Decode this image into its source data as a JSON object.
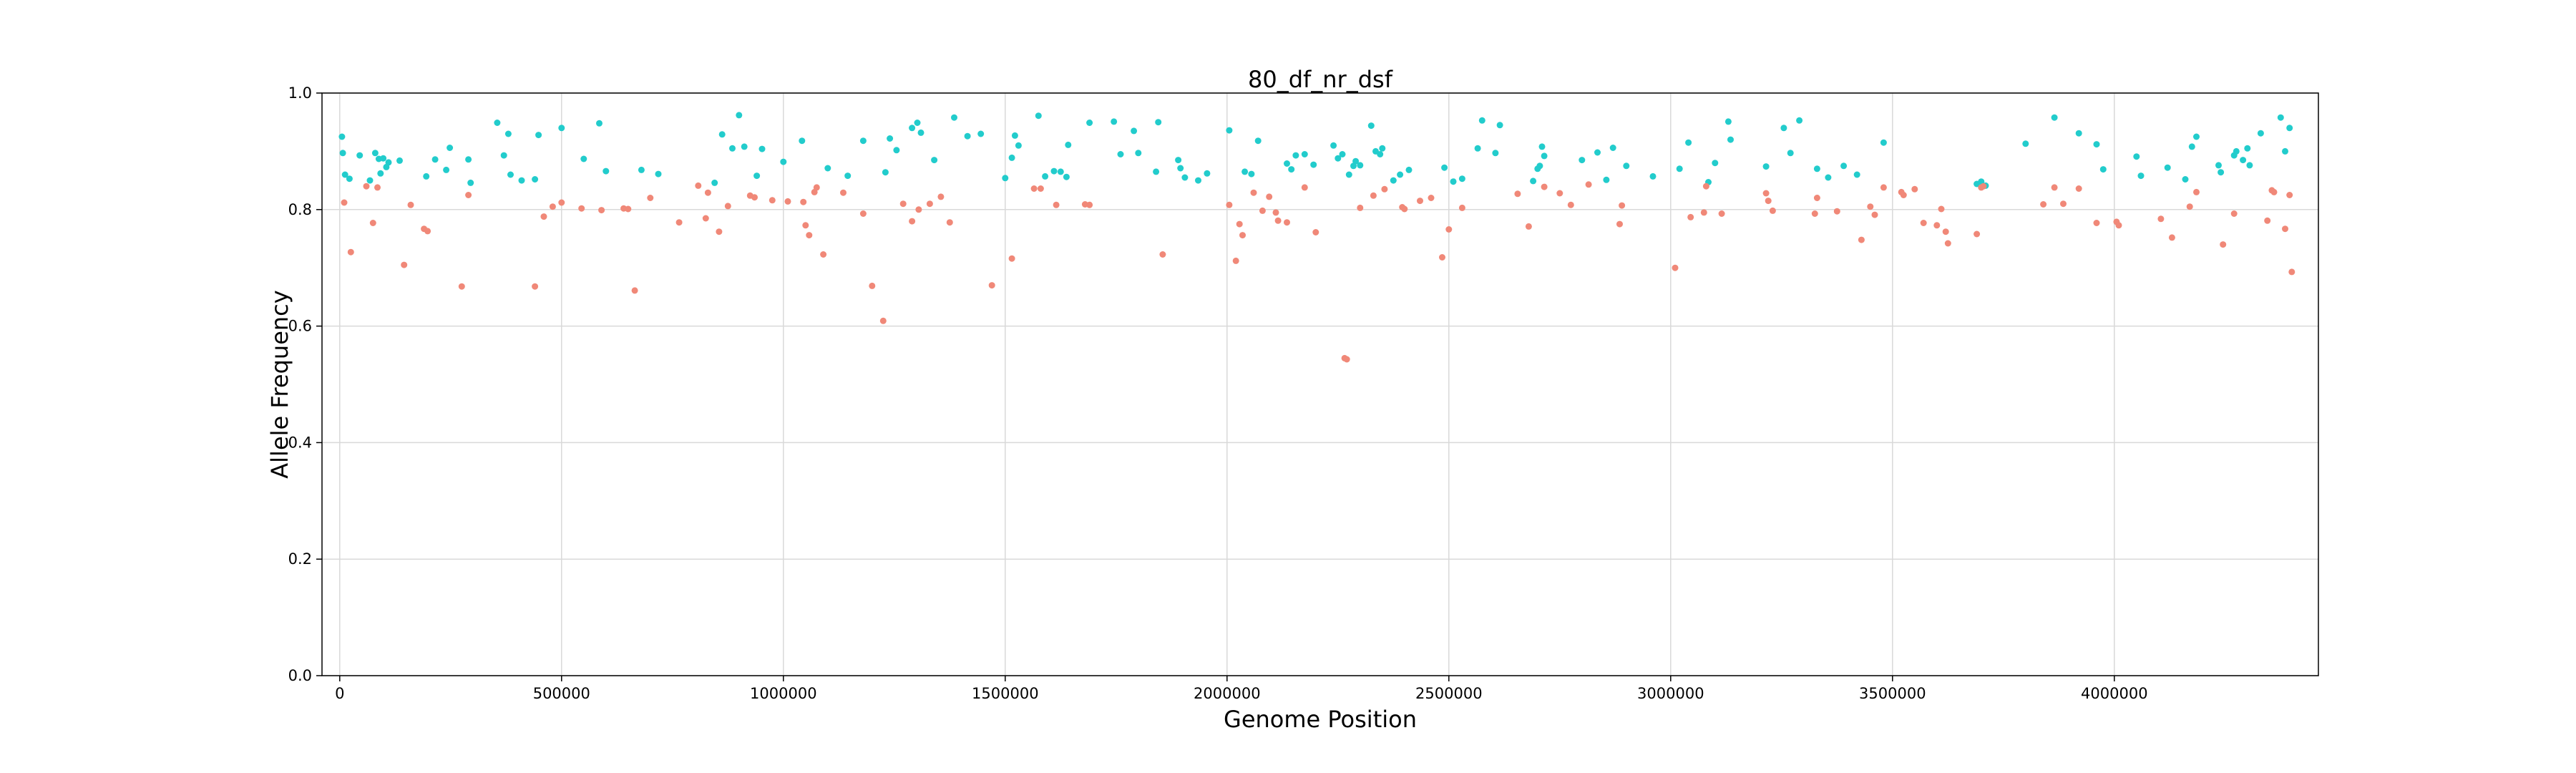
{
  "chart_data": {
    "type": "scatter",
    "title": "80_df_nr_dsf",
    "xlabel": "Genome Position",
    "ylabel": "Allele Frequency",
    "xlim": [
      -40000,
      4460000
    ],
    "ylim": [
      0.0,
      1.0
    ],
    "grid": true,
    "legend": "none",
    "xticks": [
      0,
      500000,
      1000000,
      1500000,
      2000000,
      2500000,
      3000000,
      3500000,
      4000000
    ],
    "xtick_labels": [
      "0",
      "500000",
      "1000000",
      "1500000",
      "2000000",
      "2500000",
      "3000000",
      "3500000",
      "4000000"
    ],
    "yticks": [
      0.0,
      0.2,
      0.4,
      0.6,
      0.8,
      1.0
    ],
    "ytick_labels": [
      "0.0",
      "0.2",
      "0.4",
      "0.6",
      "0.8",
      "1.0"
    ],
    "series": [
      {
        "color": "#22CCCC",
        "points": [
          [
            5000,
            0.925
          ],
          [
            7000,
            0.897
          ],
          [
            12000,
            0.86
          ],
          [
            22000,
            0.853
          ],
          [
            45000,
            0.893
          ],
          [
            68000,
            0.85
          ],
          [
            80000,
            0.897
          ],
          [
            88000,
            0.887
          ],
          [
            92000,
            0.862
          ],
          [
            98000,
            0.888
          ],
          [
            105000,
            0.873
          ],
          [
            110000,
            0.881
          ],
          [
            135000,
            0.884
          ],
          [
            195000,
            0.857
          ],
          [
            215000,
            0.886
          ],
          [
            240000,
            0.868
          ],
          [
            248000,
            0.906
          ],
          [
            290000,
            0.886
          ],
          [
            295000,
            0.846
          ],
          [
            355000,
            0.949
          ],
          [
            370000,
            0.893
          ],
          [
            380000,
            0.93
          ],
          [
            385000,
            0.86
          ],
          [
            410000,
            0.85
          ],
          [
            440000,
            0.852
          ],
          [
            448000,
            0.928
          ],
          [
            500000,
            0.94
          ],
          [
            550000,
            0.887
          ],
          [
            585000,
            0.948
          ],
          [
            600000,
            0.866
          ],
          [
            680000,
            0.868
          ],
          [
            718000,
            0.861
          ],
          [
            845000,
            0.846
          ],
          [
            862000,
            0.929
          ],
          [
            885000,
            0.905
          ],
          [
            900000,
            0.962
          ],
          [
            912000,
            0.908
          ],
          [
            940000,
            0.858
          ],
          [
            952000,
            0.904
          ],
          [
            1000000,
            0.882
          ],
          [
            1042000,
            0.918
          ],
          [
            1100000,
            0.871
          ],
          [
            1145000,
            0.858
          ],
          [
            1180000,
            0.918
          ],
          [
            1230000,
            0.864
          ],
          [
            1240000,
            0.922
          ],
          [
            1255000,
            0.902
          ],
          [
            1290000,
            0.94
          ],
          [
            1302000,
            0.949
          ],
          [
            1310000,
            0.932
          ],
          [
            1340000,
            0.885
          ],
          [
            1385000,
            0.958
          ],
          [
            1415000,
            0.926
          ],
          [
            1445000,
            0.93
          ],
          [
            1500000,
            0.854
          ],
          [
            1515000,
            0.889
          ],
          [
            1522000,
            0.927
          ],
          [
            1530000,
            0.91
          ],
          [
            1575000,
            0.961
          ],
          [
            1590000,
            0.857
          ],
          [
            1610000,
            0.866
          ],
          [
            1625000,
            0.865
          ],
          [
            1638000,
            0.856
          ],
          [
            1642000,
            0.911
          ],
          [
            1690000,
            0.949
          ],
          [
            1745000,
            0.951
          ],
          [
            1760000,
            0.895
          ],
          [
            1790000,
            0.935
          ],
          [
            1800000,
            0.897
          ],
          [
            1840000,
            0.865
          ],
          [
            1845000,
            0.95
          ],
          [
            1890000,
            0.885
          ],
          [
            1895000,
            0.871
          ],
          [
            1905000,
            0.855
          ],
          [
            1935000,
            0.85
          ],
          [
            1955000,
            0.862
          ],
          [
            2005000,
            0.936
          ],
          [
            2040000,
            0.865
          ],
          [
            2055000,
            0.861
          ],
          [
            2070000,
            0.918
          ],
          [
            2135000,
            0.879
          ],
          [
            2145000,
            0.869
          ],
          [
            2155000,
            0.893
          ],
          [
            2175000,
            0.895
          ],
          [
            2195000,
            0.877
          ],
          [
            2240000,
            0.91
          ],
          [
            2250000,
            0.888
          ],
          [
            2260000,
            0.895
          ],
          [
            2275000,
            0.86
          ],
          [
            2285000,
            0.875
          ],
          [
            2290000,
            0.883
          ],
          [
            2300000,
            0.876
          ],
          [
            2325000,
            0.944
          ],
          [
            2335000,
            0.9
          ],
          [
            2345000,
            0.895
          ],
          [
            2350000,
            0.905
          ],
          [
            2375000,
            0.85
          ],
          [
            2390000,
            0.86
          ],
          [
            2410000,
            0.868
          ],
          [
            2490000,
            0.872
          ],
          [
            2510000,
            0.848
          ],
          [
            2530000,
            0.853
          ],
          [
            2565000,
            0.905
          ],
          [
            2575000,
            0.953
          ],
          [
            2605000,
            0.897
          ],
          [
            2615000,
            0.945
          ],
          [
            2690000,
            0.849
          ],
          [
            2700000,
            0.87
          ],
          [
            2705000,
            0.875
          ],
          [
            2710000,
            0.908
          ],
          [
            2715000,
            0.892
          ],
          [
            2800000,
            0.885
          ],
          [
            2835000,
            0.898
          ],
          [
            2870000,
            0.906
          ],
          [
            2855000,
            0.851
          ],
          [
            2900000,
            0.875
          ],
          [
            2960000,
            0.857
          ],
          [
            3020000,
            0.87
          ],
          [
            3040000,
            0.915
          ],
          [
            3085000,
            0.847
          ],
          [
            3100000,
            0.88
          ],
          [
            3130000,
            0.951
          ],
          [
            3135000,
            0.92
          ],
          [
            3215000,
            0.874
          ],
          [
            3255000,
            0.94
          ],
          [
            3270000,
            0.897
          ],
          [
            3290000,
            0.953
          ],
          [
            3330000,
            0.87
          ],
          [
            3355000,
            0.855
          ],
          [
            3390000,
            0.875
          ],
          [
            3420000,
            0.86
          ],
          [
            3480000,
            0.915
          ],
          [
            3690000,
            0.844
          ],
          [
            3700000,
            0.848
          ],
          [
            3710000,
            0.841
          ],
          [
            3800000,
            0.913
          ],
          [
            3865000,
            0.958
          ],
          [
            3920000,
            0.931
          ],
          [
            3960000,
            0.912
          ],
          [
            3975000,
            0.869
          ],
          [
            4050000,
            0.891
          ],
          [
            4060000,
            0.858
          ],
          [
            4120000,
            0.872
          ],
          [
            4160000,
            0.852
          ],
          [
            4175000,
            0.908
          ],
          [
            4185000,
            0.925
          ],
          [
            4235000,
            0.876
          ],
          [
            4240000,
            0.864
          ],
          [
            4270000,
            0.893
          ],
          [
            4275000,
            0.9
          ],
          [
            4290000,
            0.885
          ],
          [
            4300000,
            0.905
          ],
          [
            4305000,
            0.876
          ],
          [
            4330000,
            0.931
          ],
          [
            4375000,
            0.958
          ],
          [
            4385000,
            0.9
          ],
          [
            4395000,
            0.94
          ]
        ]
      },
      {
        "color": "#F08878",
        "points": [
          [
            10000,
            0.812
          ],
          [
            25000,
            0.727
          ],
          [
            60000,
            0.84
          ],
          [
            75000,
            0.777
          ],
          [
            85000,
            0.838
          ],
          [
            145000,
            0.705
          ],
          [
            160000,
            0.808
          ],
          [
            190000,
            0.767
          ],
          [
            198000,
            0.763
          ],
          [
            275000,
            0.668
          ],
          [
            290000,
            0.825
          ],
          [
            440000,
            0.668
          ],
          [
            460000,
            0.788
          ],
          [
            480000,
            0.805
          ],
          [
            500000,
            0.812
          ],
          [
            545000,
            0.802
          ],
          [
            590000,
            0.799
          ],
          [
            640000,
            0.802
          ],
          [
            650000,
            0.801
          ],
          [
            665000,
            0.661
          ],
          [
            700000,
            0.82
          ],
          [
            765000,
            0.778
          ],
          [
            808000,
            0.841
          ],
          [
            825000,
            0.785
          ],
          [
            830000,
            0.829
          ],
          [
            855000,
            0.762
          ],
          [
            875000,
            0.806
          ],
          [
            925000,
            0.824
          ],
          [
            935000,
            0.821
          ],
          [
            975000,
            0.816
          ],
          [
            1010000,
            0.814
          ],
          [
            1045000,
            0.813
          ],
          [
            1050000,
            0.773
          ],
          [
            1058000,
            0.756
          ],
          [
            1070000,
            0.83
          ],
          [
            1075000,
            0.838
          ],
          [
            1090000,
            0.723
          ],
          [
            1135000,
            0.829
          ],
          [
            1180000,
            0.793
          ],
          [
            1200000,
            0.669
          ],
          [
            1225000,
            0.609
          ],
          [
            1270000,
            0.81
          ],
          [
            1290000,
            0.78
          ],
          [
            1305000,
            0.8
          ],
          [
            1330000,
            0.81
          ],
          [
            1355000,
            0.822
          ],
          [
            1375000,
            0.778
          ],
          [
            1470000,
            0.67
          ],
          [
            1515000,
            0.716
          ],
          [
            1565000,
            0.836
          ],
          [
            1580000,
            0.836
          ],
          [
            1615000,
            0.808
          ],
          [
            1680000,
            0.809
          ],
          [
            1690000,
            0.808
          ],
          [
            1855000,
            0.723
          ],
          [
            2005000,
            0.808
          ],
          [
            2020000,
            0.712
          ],
          [
            2028000,
            0.775
          ],
          [
            2035000,
            0.756
          ],
          [
            2060000,
            0.829
          ],
          [
            2080000,
            0.798
          ],
          [
            2095000,
            0.822
          ],
          [
            2110000,
            0.795
          ],
          [
            2115000,
            0.781
          ],
          [
            2135000,
            0.778
          ],
          [
            2175000,
            0.838
          ],
          [
            2200000,
            0.761
          ],
          [
            2265000,
            0.545
          ],
          [
            2270000,
            0.543
          ],
          [
            2300000,
            0.803
          ],
          [
            2330000,
            0.824
          ],
          [
            2355000,
            0.835
          ],
          [
            2395000,
            0.804
          ],
          [
            2400000,
            0.801
          ],
          [
            2435000,
            0.815
          ],
          [
            2460000,
            0.82
          ],
          [
            2485000,
            0.718
          ],
          [
            2500000,
            0.766
          ],
          [
            2530000,
            0.803
          ],
          [
            2655000,
            0.827
          ],
          [
            2680000,
            0.771
          ],
          [
            2715000,
            0.839
          ],
          [
            2750000,
            0.828
          ],
          [
            2775000,
            0.808
          ],
          [
            2815000,
            0.843
          ],
          [
            2890000,
            0.807
          ],
          [
            2885000,
            0.775
          ],
          [
            3010000,
            0.7
          ],
          [
            3045000,
            0.787
          ],
          [
            3080000,
            0.84
          ],
          [
            3075000,
            0.795
          ],
          [
            3115000,
            0.793
          ],
          [
            3215000,
            0.828
          ],
          [
            3220000,
            0.815
          ],
          [
            3230000,
            0.798
          ],
          [
            3330000,
            0.82
          ],
          [
            3325000,
            0.793
          ],
          [
            3375000,
            0.797
          ],
          [
            3430000,
            0.748
          ],
          [
            3450000,
            0.805
          ],
          [
            3460000,
            0.791
          ],
          [
            3480000,
            0.838
          ],
          [
            3520000,
            0.83
          ],
          [
            3525000,
            0.825
          ],
          [
            3550000,
            0.835
          ],
          [
            3570000,
            0.777
          ],
          [
            3600000,
            0.773
          ],
          [
            3610000,
            0.801
          ],
          [
            3620000,
            0.762
          ],
          [
            3625000,
            0.742
          ],
          [
            3690000,
            0.758
          ],
          [
            3700000,
            0.838
          ],
          [
            3705000,
            0.84
          ],
          [
            3840000,
            0.809
          ],
          [
            3865000,
            0.838
          ],
          [
            3885000,
            0.81
          ],
          [
            3920000,
            0.836
          ],
          [
            3960000,
            0.777
          ],
          [
            4005000,
            0.779
          ],
          [
            4010000,
            0.773
          ],
          [
            4105000,
            0.784
          ],
          [
            4130000,
            0.752
          ],
          [
            4170000,
            0.805
          ],
          [
            4185000,
            0.83
          ],
          [
            4245000,
            0.74
          ],
          [
            4270000,
            0.793
          ],
          [
            4345000,
            0.781
          ],
          [
            4355000,
            0.833
          ],
          [
            4360000,
            0.83
          ],
          [
            4385000,
            0.767
          ],
          [
            4395000,
            0.825
          ],
          [
            4400000,
            0.693
          ]
        ]
      }
    ]
  }
}
